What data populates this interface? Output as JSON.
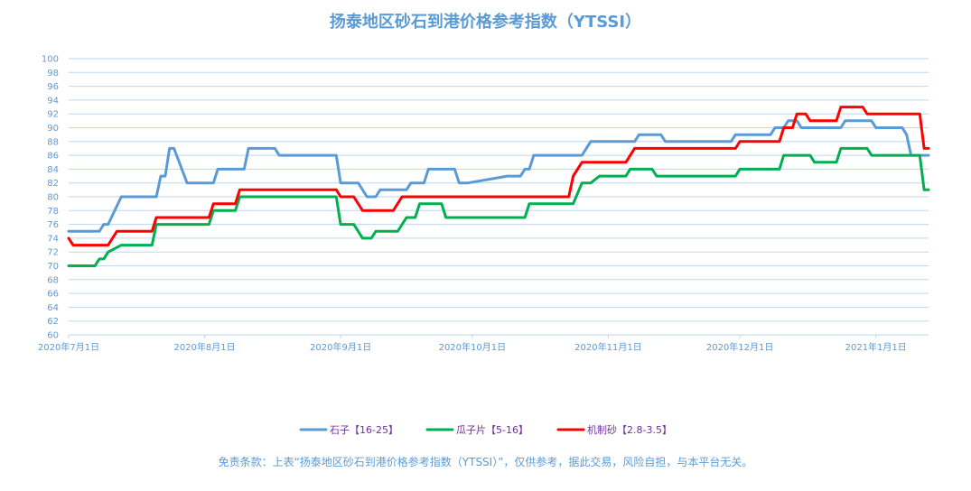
{
  "chart_data": {
    "type": "line",
    "title": "扬泰地区砂石到港价格参考指数（YTSSI）",
    "ylim": [
      60,
      100
    ],
    "y_ticks": [
      "60",
      "62",
      "64",
      "66",
      "68",
      "70",
      "72",
      "74",
      "76",
      "78",
      "80",
      "82",
      "84",
      "86",
      "88",
      "90",
      "92",
      "94",
      "96",
      "98",
      "100"
    ],
    "x_tick_labels": [
      "2020年7月1日",
      "2020年8月1日",
      "2020年9月1日",
      "2020年10月1日",
      "2020年11月1日",
      "2020年12月1日",
      "2021年1月1日"
    ],
    "x_tick_dates": [
      "2020-07-01",
      "2020-08-01",
      "2020-09-01",
      "2020-10-01",
      "2020-11-01",
      "2020-12-01",
      "2021-01-01"
    ],
    "xlim": [
      "2020-07-01",
      "2021-01-13"
    ],
    "grid": true,
    "legend_position": "bottom",
    "series": [
      {
        "name": "石子【16-25】",
        "color": "#5b9bd5",
        "points": [
          [
            "2020-07-01",
            75
          ],
          [
            "2020-07-08",
            75
          ],
          [
            "2020-07-09",
            76
          ],
          [
            "2020-07-10",
            76
          ],
          [
            "2020-07-13",
            80
          ],
          [
            "2020-07-21",
            80
          ],
          [
            "2020-07-22",
            83
          ],
          [
            "2020-07-23",
            83
          ],
          [
            "2020-07-24",
            87
          ],
          [
            "2020-07-25",
            87
          ],
          [
            "2020-07-28",
            82
          ],
          [
            "2020-08-03",
            82
          ],
          [
            "2020-08-04",
            84
          ],
          [
            "2020-08-10",
            84
          ],
          [
            "2020-08-11",
            87
          ],
          [
            "2020-08-17",
            87
          ],
          [
            "2020-08-18",
            86
          ],
          [
            "2020-08-31",
            86
          ],
          [
            "2020-09-01",
            82
          ],
          [
            "2020-09-05",
            82
          ],
          [
            "2020-09-07",
            80
          ],
          [
            "2020-09-09",
            80
          ],
          [
            "2020-09-10",
            81
          ],
          [
            "2020-09-16",
            81
          ],
          [
            "2020-09-17",
            82
          ],
          [
            "2020-09-20",
            82
          ],
          [
            "2020-09-21",
            84
          ],
          [
            "2020-09-27",
            84
          ],
          [
            "2020-09-28",
            82
          ],
          [
            "2020-09-30",
            82
          ],
          [
            "2020-10-09",
            83
          ],
          [
            "2020-10-12",
            83
          ],
          [
            "2020-10-13",
            84
          ],
          [
            "2020-10-14",
            84
          ],
          [
            "2020-10-15",
            86
          ],
          [
            "2020-10-26",
            86
          ],
          [
            "2020-10-28",
            88
          ],
          [
            "2020-11-07",
            88
          ],
          [
            "2020-11-08",
            89
          ],
          [
            "2020-11-13",
            89
          ],
          [
            "2020-11-14",
            88
          ],
          [
            "2020-11-29",
            88
          ],
          [
            "2020-11-30",
            89
          ],
          [
            "2020-12-08",
            89
          ],
          [
            "2020-12-09",
            90
          ],
          [
            "2020-12-11",
            90
          ],
          [
            "2020-12-12",
            91
          ],
          [
            "2020-12-14",
            91
          ],
          [
            "2020-12-15",
            90
          ],
          [
            "2020-12-24",
            90
          ],
          [
            "2020-12-25",
            91
          ],
          [
            "2020-12-31",
            91
          ],
          [
            "2021-01-01",
            90
          ],
          [
            "2021-01-07",
            90
          ],
          [
            "2021-01-08",
            89
          ],
          [
            "2021-01-09",
            86
          ],
          [
            "2021-01-13",
            86
          ]
        ]
      },
      {
        "name": "瓜子片【5-16】",
        "color": "#00b050",
        "points": [
          [
            "2020-07-01",
            70
          ],
          [
            "2020-07-07",
            70
          ],
          [
            "2020-07-08",
            71
          ],
          [
            "2020-07-09",
            71
          ],
          [
            "2020-07-10",
            72
          ],
          [
            "2020-07-13",
            73
          ],
          [
            "2020-07-20",
            73
          ],
          [
            "2020-07-21",
            76
          ],
          [
            "2020-08-02",
            76
          ],
          [
            "2020-08-03",
            78
          ],
          [
            "2020-08-08",
            78
          ],
          [
            "2020-08-09",
            80
          ],
          [
            "2020-08-31",
            80
          ],
          [
            "2020-09-01",
            76
          ],
          [
            "2020-09-04",
            76
          ],
          [
            "2020-09-06",
            74
          ],
          [
            "2020-09-08",
            74
          ],
          [
            "2020-09-09",
            75
          ],
          [
            "2020-09-14",
            75
          ],
          [
            "2020-09-16",
            77
          ],
          [
            "2020-09-18",
            77
          ],
          [
            "2020-09-19",
            79
          ],
          [
            "2020-09-24",
            79
          ],
          [
            "2020-09-25",
            77
          ],
          [
            "2020-10-13",
            77
          ],
          [
            "2020-10-14",
            79
          ],
          [
            "2020-10-24",
            79
          ],
          [
            "2020-10-26",
            82
          ],
          [
            "2020-10-28",
            82
          ],
          [
            "2020-10-30",
            83
          ],
          [
            "2020-11-05",
            83
          ],
          [
            "2020-11-06",
            84
          ],
          [
            "2020-11-11",
            84
          ],
          [
            "2020-11-12",
            83
          ],
          [
            "2020-11-30",
            83
          ],
          [
            "2020-12-01",
            84
          ],
          [
            "2020-12-10",
            84
          ],
          [
            "2020-12-11",
            86
          ],
          [
            "2020-12-17",
            86
          ],
          [
            "2020-12-18",
            85
          ],
          [
            "2020-12-23",
            85
          ],
          [
            "2020-12-24",
            87
          ],
          [
            "2020-12-30",
            87
          ],
          [
            "2020-12-31",
            86
          ],
          [
            "2021-01-11",
            86
          ],
          [
            "2021-01-12",
            81
          ],
          [
            "2021-01-13",
            81
          ]
        ]
      },
      {
        "name": "机制砂【2.8-3.5】",
        "color": "#ff0000",
        "points": [
          [
            "2020-07-01",
            74
          ],
          [
            "2020-07-02",
            73
          ],
          [
            "2020-07-10",
            73
          ],
          [
            "2020-07-12",
            75
          ],
          [
            "2020-07-20",
            75
          ],
          [
            "2020-07-21",
            77
          ],
          [
            "2020-08-02",
            77
          ],
          [
            "2020-08-03",
            79
          ],
          [
            "2020-08-08",
            79
          ],
          [
            "2020-08-09",
            81
          ],
          [
            "2020-08-31",
            81
          ],
          [
            "2020-09-01",
            80
          ],
          [
            "2020-09-04",
            80
          ],
          [
            "2020-09-06",
            78
          ],
          [
            "2020-09-13",
            78
          ],
          [
            "2020-09-15",
            80
          ],
          [
            "2020-10-23",
            80
          ],
          [
            "2020-10-24",
            83
          ],
          [
            "2020-10-26",
            85
          ],
          [
            "2020-11-05",
            85
          ],
          [
            "2020-11-07",
            87
          ],
          [
            "2020-11-30",
            87
          ],
          [
            "2020-12-01",
            88
          ],
          [
            "2020-12-10",
            88
          ],
          [
            "2020-12-11",
            90
          ],
          [
            "2020-12-13",
            90
          ],
          [
            "2020-12-14",
            92
          ],
          [
            "2020-12-16",
            92
          ],
          [
            "2020-12-17",
            91
          ],
          [
            "2020-12-23",
            91
          ],
          [
            "2020-12-24",
            93
          ],
          [
            "2020-12-29",
            93
          ],
          [
            "2020-12-30",
            92
          ],
          [
            "2021-01-11",
            92
          ],
          [
            "2021-01-12",
            87
          ],
          [
            "2021-01-13",
            87
          ]
        ]
      }
    ]
  },
  "disclaimer": "免责条款：上表“扬泰地区砂石到港价格参考指数（YTSSI）”，仅供参考，据此交易，风险自担，与本平台无关。"
}
